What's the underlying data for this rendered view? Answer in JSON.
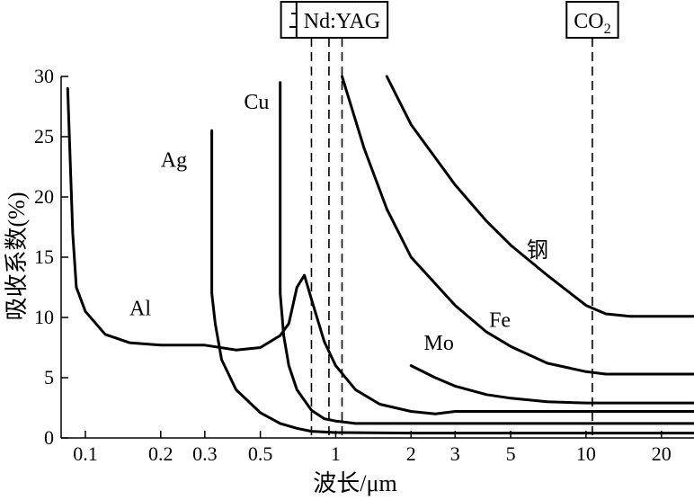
{
  "chart_data": {
    "type": "line",
    "xlabel": "波长/μm",
    "ylabel": "吸收系数(%)",
    "x_scale": "log",
    "xlim": [
      0.08,
      27
    ],
    "ylim": [
      0,
      30
    ],
    "x_ticks": [
      {
        "value": 0.1,
        "label": "0.1"
      },
      {
        "value": 0.2,
        "label": "0.2"
      },
      {
        "value": 0.3,
        "label": "0.3"
      },
      {
        "value": 0.5,
        "label": "0.5"
      },
      {
        "value": 1,
        "label": "1"
      },
      {
        "value": 2,
        "label": "2"
      },
      {
        "value": 3,
        "label": "3"
      },
      {
        "value": 5,
        "label": "5"
      },
      {
        "value": 10,
        "label": "10"
      },
      {
        "value": 20,
        "label": "20"
      }
    ],
    "y_ticks": [
      0,
      5,
      10,
      15,
      20,
      25,
      30
    ],
    "lasers": [
      {
        "label": "二极管",
        "x": [
          0.8,
          0.94
        ]
      },
      {
        "label": "Nd:YAG",
        "x": [
          1.06
        ]
      },
      {
        "label": "CO",
        "sub": "2",
        "x": [
          10.6
        ]
      }
    ],
    "series": [
      {
        "name": "Al",
        "label_at": [
          0.15,
          10.2
        ],
        "points": [
          [
            0.085,
            29
          ],
          [
            0.089,
            17
          ],
          [
            0.092,
            12.5
          ],
          [
            0.1,
            10.5
          ],
          [
            0.12,
            8.6
          ],
          [
            0.15,
            7.9
          ],
          [
            0.2,
            7.7
          ],
          [
            0.3,
            7.7
          ],
          [
            0.4,
            7.3
          ],
          [
            0.5,
            7.5
          ],
          [
            0.6,
            8.5
          ],
          [
            0.65,
            9.5
          ],
          [
            0.7,
            12.5
          ],
          [
            0.75,
            13.5
          ],
          [
            0.8,
            11.5
          ],
          [
            0.9,
            8.0
          ],
          [
            1.0,
            6.0
          ],
          [
            1.2,
            4.0
          ],
          [
            1.5,
            2.8
          ],
          [
            2,
            2.2
          ],
          [
            2.5,
            2.0
          ],
          [
            3,
            2.2
          ],
          [
            5,
            2.2
          ],
          [
            10,
            2.2
          ],
          [
            27,
            2.2
          ]
        ]
      },
      {
        "name": "Ag",
        "label_at": [
          0.2,
          22.5
        ],
        "points": [
          [
            0.32,
            25.5
          ],
          [
            0.32,
            12
          ],
          [
            0.33,
            9.5
          ],
          [
            0.35,
            6.5
          ],
          [
            0.4,
            4.0
          ],
          [
            0.5,
            2.1
          ],
          [
            0.6,
            1.2
          ],
          [
            0.7,
            0.8
          ],
          [
            0.8,
            0.55
          ],
          [
            1.0,
            0.45
          ],
          [
            2,
            0.4
          ],
          [
            5,
            0.4
          ],
          [
            27,
            0.4
          ]
        ]
      },
      {
        "name": "Cu",
        "label_at": [
          0.43,
          27.3
        ],
        "points": [
          [
            0.6,
            29.5
          ],
          [
            0.6,
            12
          ],
          [
            0.62,
            8.5
          ],
          [
            0.65,
            6.0
          ],
          [
            0.7,
            4.0
          ],
          [
            0.8,
            2.3
          ],
          [
            0.9,
            1.6
          ],
          [
            1.0,
            1.4
          ],
          [
            1.2,
            1.2
          ],
          [
            2,
            1.2
          ],
          [
            5,
            1.2
          ],
          [
            27,
            1.2
          ]
        ]
      },
      {
        "name": "Mo",
        "label_at": [
          2.25,
          7.3
        ],
        "points": [
          [
            2,
            6.0
          ],
          [
            2.5,
            5.0
          ],
          [
            3,
            4.3
          ],
          [
            4,
            3.6
          ],
          [
            5,
            3.3
          ],
          [
            7,
            3.0
          ],
          [
            10,
            2.9
          ],
          [
            27,
            2.9
          ]
        ]
      },
      {
        "name": "Fe",
        "label_at": [
          4.1,
          9.2
        ],
        "points": [
          [
            1.06,
            30
          ],
          [
            1.3,
            24
          ],
          [
            1.6,
            19
          ],
          [
            2,
            15
          ],
          [
            3,
            11
          ],
          [
            4,
            8.8
          ],
          [
            5,
            7.6
          ],
          [
            7,
            6.2
          ],
          [
            10,
            5.5
          ],
          [
            12,
            5.3
          ],
          [
            27,
            5.3
          ]
        ]
      },
      {
        "name": "钢",
        "label_at": [
          5.8,
          15.0
        ],
        "points": [
          [
            1.6,
            30
          ],
          [
            2,
            26
          ],
          [
            3,
            21
          ],
          [
            4,
            18
          ],
          [
            5,
            16
          ],
          [
            7,
            13.5
          ],
          [
            10,
            11
          ],
          [
            12,
            10.3
          ],
          [
            15,
            10.1
          ],
          [
            27,
            10.1
          ]
        ]
      }
    ]
  }
}
